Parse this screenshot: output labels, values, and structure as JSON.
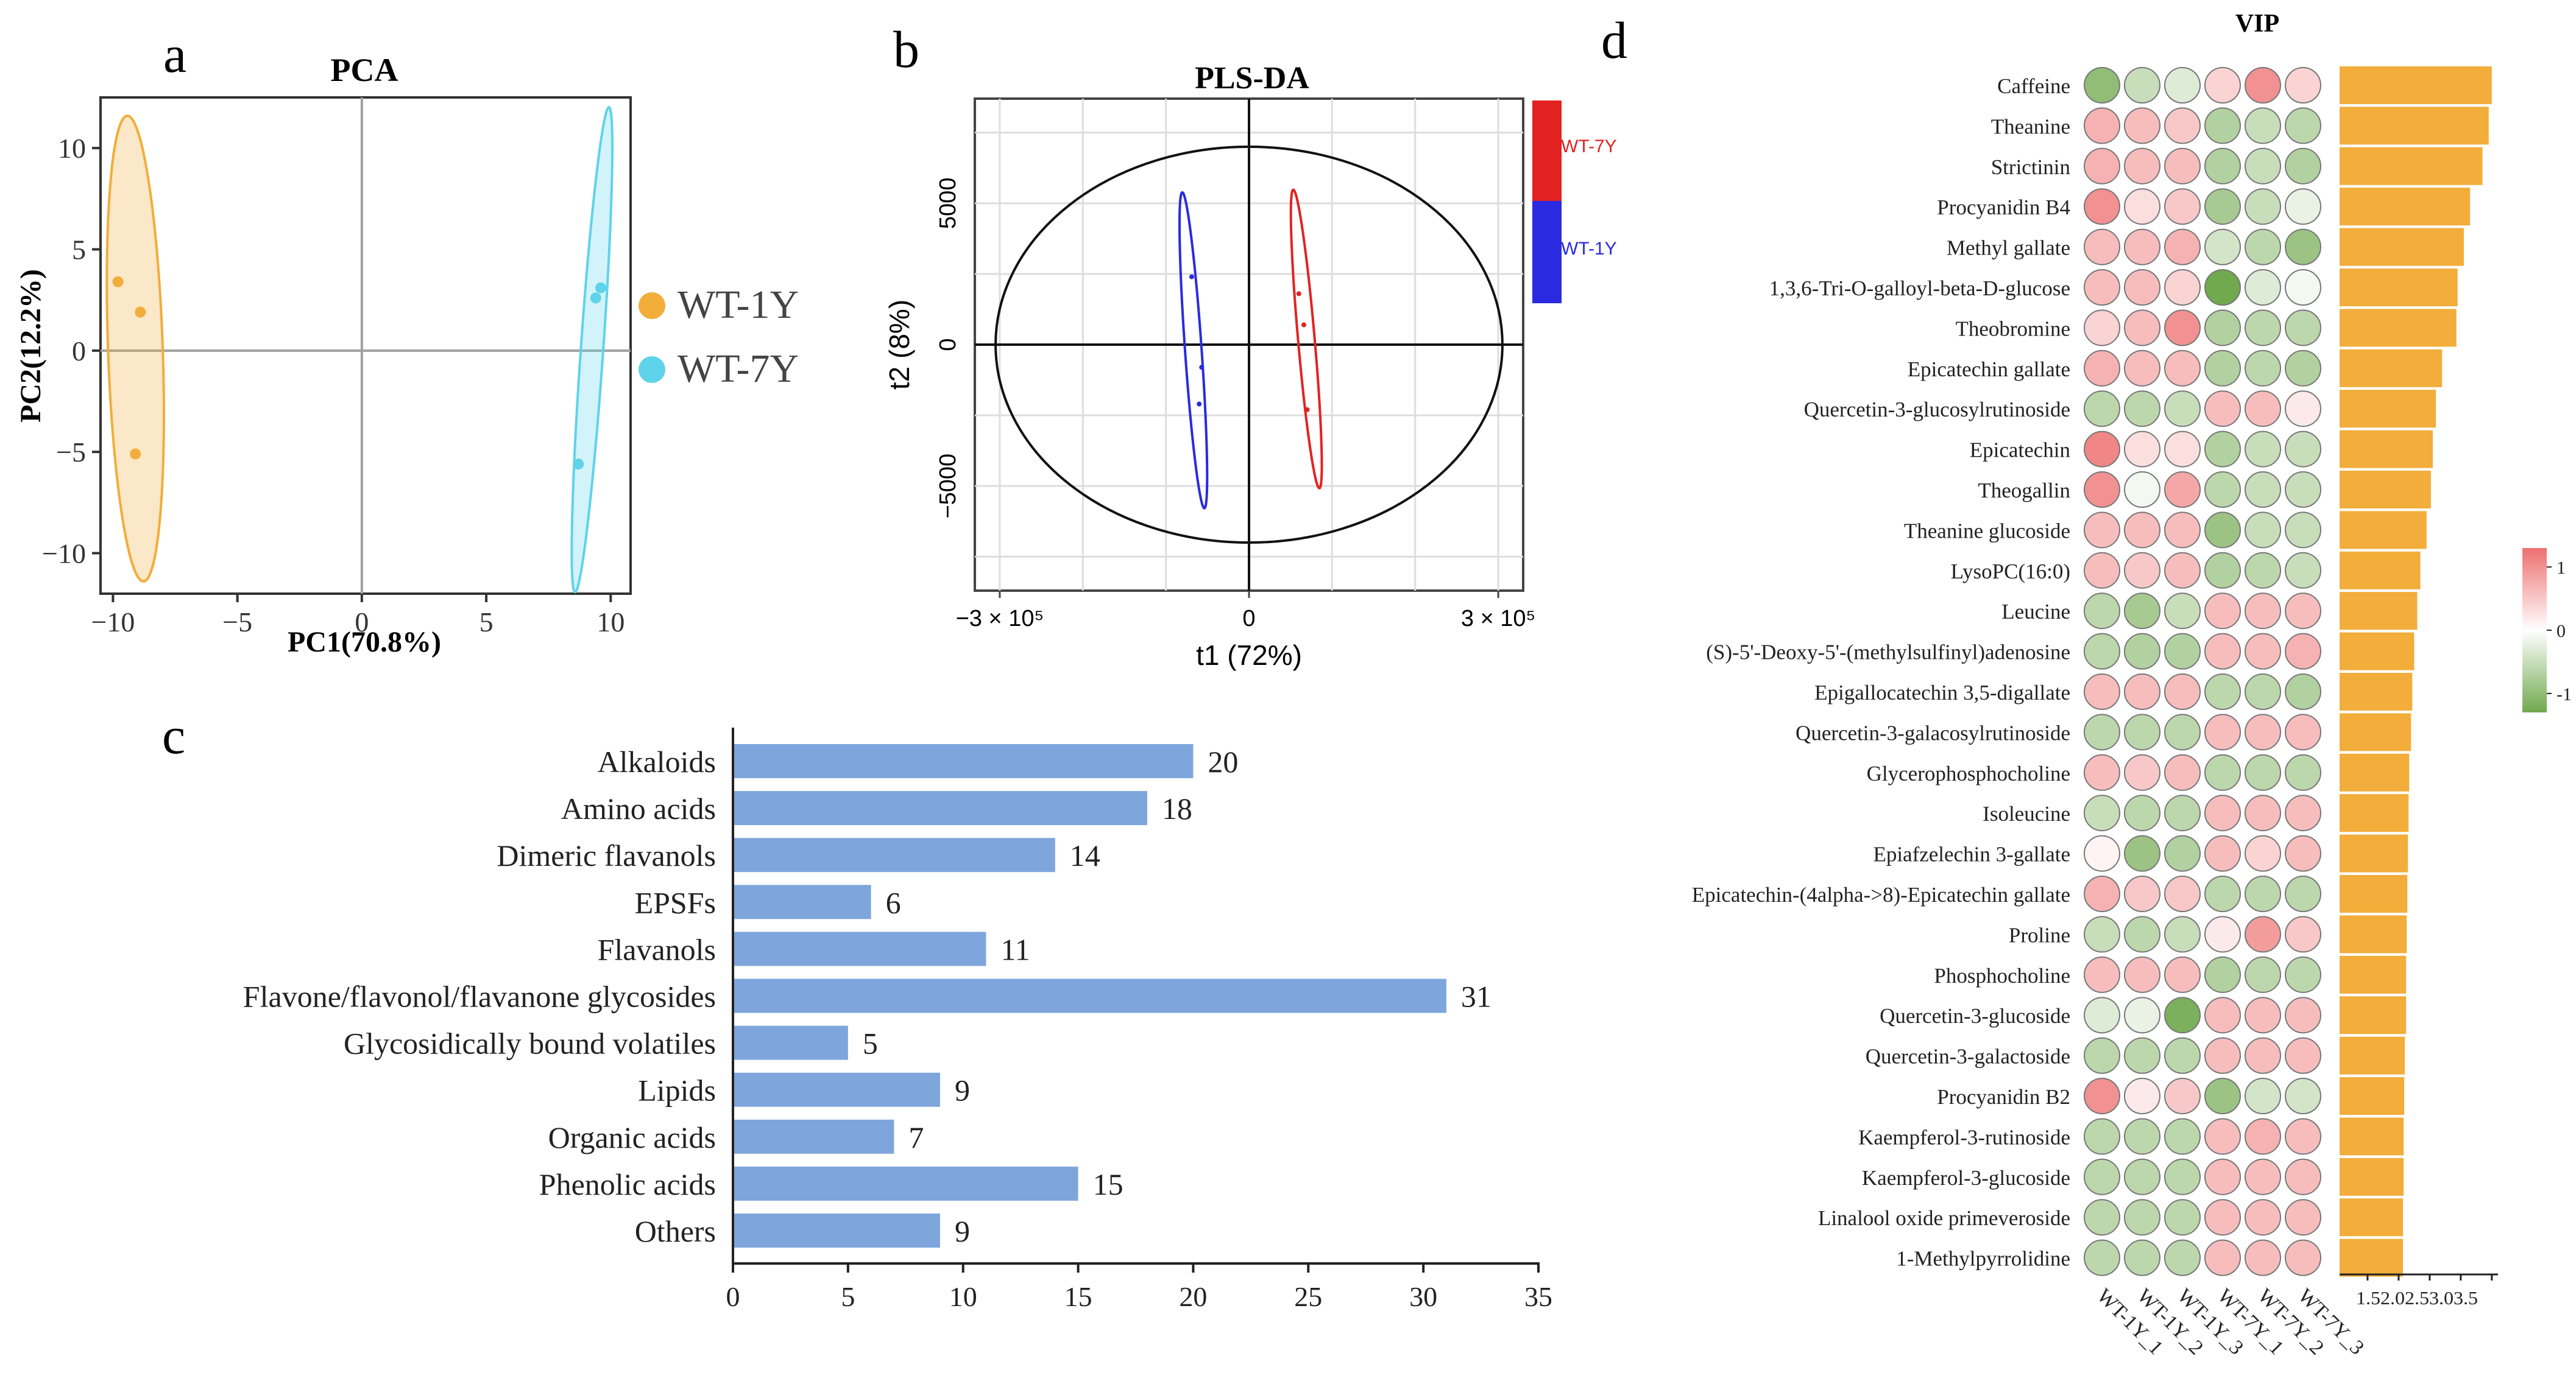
{
  "colors": {
    "wt1y": "#f2ad3a",
    "wt7y": "#5fd3ea",
    "plsda_wt7y": "#e32222",
    "plsda_wt1y": "#2a2ae0",
    "bar_c": "#7ea6dc",
    "vip_bar": "#f2ad3a",
    "heat_high": "#ee7070",
    "heat_mid": "#ffffff",
    "heat_low": "#70a94e"
  },
  "chart_data": [
    {
      "panel": "a",
      "type": "scatter",
      "title": "PCA",
      "xlabel": "PC1(70.8%)",
      "ylabel": "PC2(12.2%)",
      "xlim": [
        -10.5,
        10.8
      ],
      "ylim": [
        -12.0,
        12.5
      ],
      "xticks": [
        -10,
        -5,
        0,
        5,
        10
      ],
      "xtick_labels": [
        "−10",
        "−5",
        "0",
        "5",
        "10"
      ],
      "yticks": [
        10,
        5,
        0,
        -5,
        -10
      ],
      "ytick_labels": [
        "10",
        "5",
        "0",
        "−5",
        "−10"
      ],
      "legend": [
        "WT-1Y",
        "WT-7Y"
      ],
      "series": [
        {
          "name": "WT-1Y",
          "points": [
            [
              -9.8,
              3.4
            ],
            [
              -8.9,
              1.9
            ],
            [
              -9.1,
              -5.1
            ]
          ],
          "ellipse": {
            "cx": -9.1,
            "cy": 0.1,
            "semi_major": 11.5,
            "semi_minor": 1.1,
            "tilt_deg": -2
          }
        },
        {
          "name": "WT-7Y",
          "points": [
            [
              9.4,
              2.6
            ],
            [
              9.6,
              3.1
            ],
            [
              8.7,
              -5.6
            ]
          ],
          "ellipse": {
            "cx": 9.25,
            "cy": 0.05,
            "semi_major": 12.0,
            "semi_minor": 0.45,
            "tilt_deg": 4
          }
        }
      ]
    },
    {
      "panel": "b",
      "type": "scatter",
      "title": "PLS-DA",
      "xlabel": "t1 (72%)",
      "ylabel": "t2 (8%)",
      "xlim": [
        -330000,
        330000
      ],
      "ylim": [
        -8700,
        8700
      ],
      "xtick_labels": [
        "−3 × 10⁵",
        "0",
        "3 × 10⁵"
      ],
      "xtick_values": [
        -300000,
        0,
        300000
      ],
      "ytick_labels": [
        "5000",
        "0",
        "−5000"
      ],
      "ytick_values": [
        5000,
        0,
        -5000
      ],
      "legend": [
        "WT-7Y",
        "WT-1Y"
      ],
      "hotelling_ellipse": {
        "cx": 0,
        "cy": 0,
        "rx": 305000,
        "ry": 7000
      },
      "series": [
        {
          "name": "WT-1Y",
          "points": [
            [
              -69000,
              2400
            ],
            [
              -57000,
              -800
            ],
            [
              -60000,
              -2100
            ]
          ],
          "ellipse": {
            "cx": -67000,
            "cy": -200,
            "semi_major": 5600,
            "semi_minor": 10000
          }
        },
        {
          "name": "WT-7Y",
          "points": [
            [
              60000,
              1800
            ],
            [
              66000,
              700
            ],
            [
              70000,
              -2300
            ]
          ],
          "ellipse": {
            "cx": 69000,
            "cy": 200,
            "semi_major": 5300,
            "semi_minor": 10000
          }
        }
      ]
    },
    {
      "panel": "c",
      "type": "bar",
      "orientation": "horizontal",
      "categories": [
        "Alkaloids",
        "Amino acids",
        "Dimeric flavanols",
        "EPSFs",
        "Flavanols",
        "Flavone/flavonol/flavanone glycosides",
        "Glycosidically bound volatiles",
        "Lipids",
        "Organic acids",
        "Phenolic acids",
        "Others"
      ],
      "values": [
        20,
        18,
        14,
        6,
        11,
        31,
        5,
        9,
        7,
        15,
        9
      ],
      "xlim": [
        0,
        35
      ],
      "xticks": [
        0,
        5,
        10,
        15,
        20,
        25,
        30,
        35
      ]
    },
    {
      "panel": "d",
      "type": "heatmap",
      "title": "VIP",
      "columns": [
        "WT-1Y_1",
        "WT-1Y_2",
        "WT-1Y_3",
        "WT-7Y_1",
        "WT-7Y_2",
        "WT-7Y_3"
      ],
      "rows": [
        "Caffeine",
        "Theanine",
        "Strictinin",
        "Procyanidin B4",
        "Methyl gallate",
        "1,3,6-Tri-O-galloyl-beta-D-glucose",
        "Theobromine",
        "Epicatechin gallate",
        "Quercetin-3-glucosylrutinoside",
        "Epicatechin",
        "Theogallin",
        "Theanine glucoside",
        "LysoPC(16:0)",
        "Leucine",
        "(S)-5'-Deoxy-5'-(methylsulfinyl)adenosine",
        "Epigallocatechin 3,5-digallate",
        "Quercetin-3-galacosylrutinoside",
        "Glycerophosphocholine",
        "Isoleucine",
        "Epiafzelechin 3-gallate",
        "Epicatechin-(4alpha->8)-Epicatechin gallate",
        "Proline",
        "Phosphocholine",
        "Quercetin-3-glucoside",
        "Quercetin-3-galactoside",
        "Procyanidin B2",
        "Kaempferol-3-rutinoside",
        "Kaempferol-3-glucoside",
        "Linalool oxide primeveroside",
        "1-Methylpyrrolidine"
      ],
      "values": [
        [
          -1.0,
          -0.5,
          -0.3,
          0.4,
          1.0,
          0.4
        ],
        [
          0.7,
          0.6,
          0.5,
          -0.7,
          -0.5,
          -0.6
        ],
        [
          0.7,
          0.6,
          0.6,
          -0.7,
          -0.5,
          -0.7
        ],
        [
          1.0,
          0.3,
          0.5,
          -0.8,
          -0.5,
          -0.2
        ],
        [
          0.6,
          0.6,
          0.7,
          -0.4,
          -0.6,
          -0.9
        ],
        [
          0.6,
          0.6,
          0.4,
          -1.3,
          -0.3,
          -0.1
        ],
        [
          0.4,
          0.6,
          1.0,
          -0.7,
          -0.6,
          -0.6
        ],
        [
          0.7,
          0.6,
          0.6,
          -0.7,
          -0.6,
          -0.7
        ],
        [
          -0.6,
          -0.6,
          -0.5,
          0.6,
          0.6,
          0.2
        ],
        [
          1.1,
          0.3,
          0.3,
          -0.7,
          -0.5,
          -0.5
        ],
        [
          1.0,
          -0.1,
          0.8,
          -0.6,
          -0.5,
          -0.5
        ],
        [
          0.6,
          0.6,
          0.6,
          -0.9,
          -0.5,
          -0.5
        ],
        [
          0.6,
          0.5,
          0.6,
          -0.7,
          -0.6,
          -0.5
        ],
        [
          -0.6,
          -0.8,
          -0.5,
          0.6,
          0.6,
          0.6
        ],
        [
          -0.6,
          -0.7,
          -0.7,
          0.6,
          0.6,
          0.7
        ],
        [
          0.6,
          0.6,
          0.6,
          -0.6,
          -0.6,
          -0.7
        ],
        [
          -0.6,
          -0.6,
          -0.6,
          0.6,
          0.6,
          0.6
        ],
        [
          0.6,
          0.5,
          0.6,
          -0.6,
          -0.6,
          -0.6
        ],
        [
          -0.5,
          -0.6,
          -0.6,
          0.6,
          0.6,
          0.6
        ],
        [
          0.1,
          -0.9,
          -0.7,
          0.6,
          0.4,
          0.6
        ],
        [
          0.7,
          0.5,
          0.5,
          -0.6,
          -0.6,
          -0.6
        ],
        [
          -0.5,
          -0.6,
          -0.5,
          0.2,
          0.9,
          0.5
        ],
        [
          0.6,
          0.6,
          0.6,
          -0.7,
          -0.6,
          -0.6
        ],
        [
          -0.3,
          -0.2,
          -1.2,
          0.6,
          0.6,
          0.6
        ],
        [
          -0.6,
          -0.6,
          -0.6,
          0.6,
          0.6,
          0.6
        ],
        [
          1.0,
          0.2,
          0.5,
          -0.9,
          -0.4,
          -0.4
        ],
        [
          -0.6,
          -0.6,
          -0.6,
          0.6,
          0.7,
          0.6
        ],
        [
          -0.6,
          -0.6,
          -0.6,
          0.6,
          0.6,
          0.6
        ],
        [
          -0.6,
          -0.6,
          -0.6,
          0.6,
          0.6,
          0.6
        ],
        [
          -0.6,
          -0.6,
          -0.6,
          0.6,
          0.6,
          0.6
        ]
      ],
      "vip": [
        3.5,
        3.45,
        3.35,
        3.15,
        3.05,
        2.95,
        2.93,
        2.7,
        2.6,
        2.55,
        2.52,
        2.45,
        2.35,
        2.3,
        2.25,
        2.22,
        2.2,
        2.17,
        2.16,
        2.15,
        2.14,
        2.13,
        2.12,
        2.12,
        2.1,
        2.09,
        2.08,
        2.08,
        2.07,
        2.07
      ],
      "vip_axis": {
        "xlim": [
          1.05,
          3.6
        ],
        "xticks": [
          1.5,
          2.0,
          2.5,
          3.0,
          3.5
        ],
        "tick_text": "1.52.02.53.03.5"
      },
      "colorbar": {
        "range": [
          -1.3,
          1.3
        ],
        "ticks": [
          1,
          0,
          -1
        ],
        "tick_labels": [
          "1",
          "0",
          "-1"
        ]
      }
    }
  ],
  "panel_labels": {
    "a": "a",
    "b": "b",
    "c": "c",
    "d": "d"
  }
}
